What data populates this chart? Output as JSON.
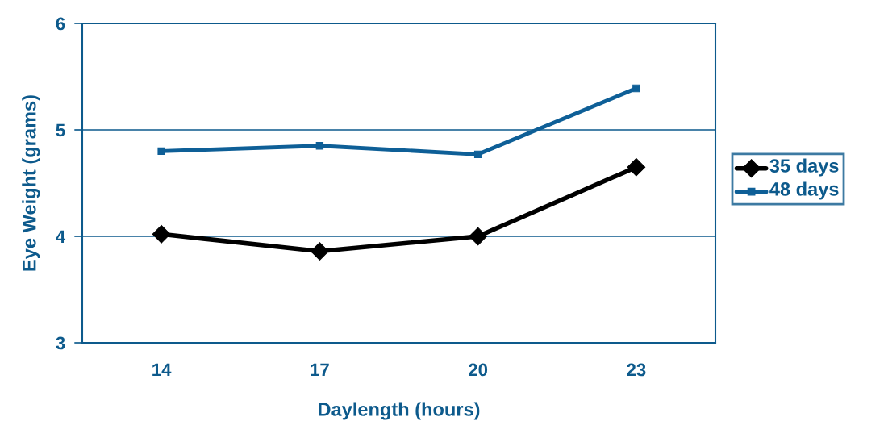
{
  "chart_data": {
    "type": "line",
    "xlabel": "Daylength (hours)",
    "ylabel": "Eye Weight (grams)",
    "categories": [
      "14",
      "17",
      "20",
      "23"
    ],
    "series": [
      {
        "name": "35 days",
        "color": "#000000",
        "marker": "diamond",
        "values": [
          4.02,
          3.86,
          4.0,
          4.65
        ]
      },
      {
        "name": "48 days",
        "color": "#0e5f97",
        "marker": "square",
        "values": [
          4.8,
          4.85,
          4.77,
          5.39
        ]
      }
    ],
    "ylim": [
      3,
      6
    ],
    "yticks": [
      3,
      4,
      5,
      6
    ],
    "grid": "y",
    "legend": "right",
    "line_style": "solid"
  }
}
